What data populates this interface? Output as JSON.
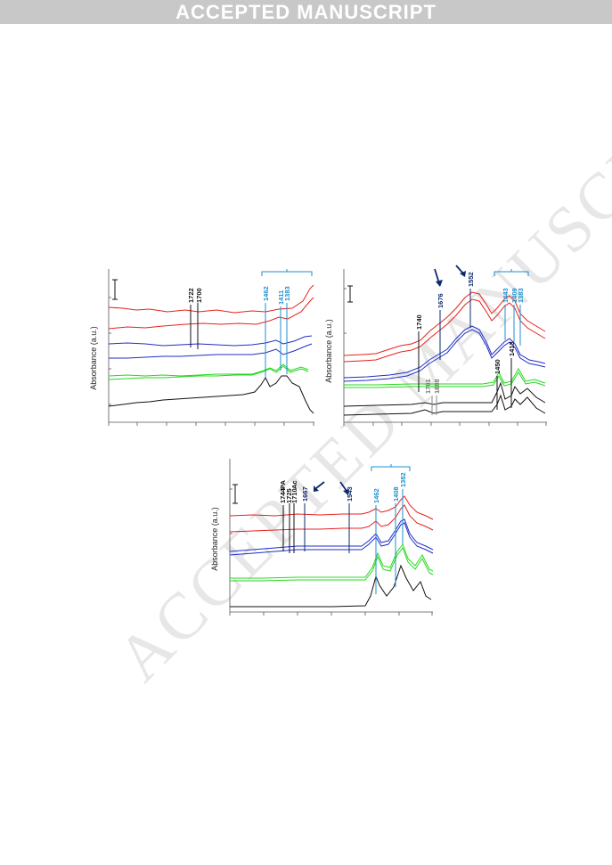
{
  "header": {
    "banner_text": "ACCEPTED MANUSCRIPT"
  },
  "watermark": {
    "text": "ACCEPTED MANUSCRIPT"
  },
  "colors": {
    "red": "#e8201b",
    "blue": "#1f2fc8",
    "green": "#27d81f",
    "black": "#111111",
    "cyan": "#1c8fcf",
    "navy": "#0d2a6b"
  },
  "chart_data": [
    {
      "type": "line",
      "ylabel": "Absorbance (a.u.)",
      "annotations_black": [
        "1722",
        "1700"
      ],
      "annotations_cyan": [
        "1462",
        "1411",
        "1383"
      ]
    },
    {
      "type": "line",
      "ylabel": "Absorbance (a.u.)",
      "annotations_black": [
        "1740",
        "1450",
        "1413"
      ],
      "annotations_gray": [
        "1701",
        "1688"
      ],
      "annotations_navy": [
        "1676",
        "1552"
      ],
      "annotations_cyan": [
        "1443",
        "1409",
        "1383"
      ]
    },
    {
      "type": "line",
      "ylabel": "Absorbance (a.u.)",
      "annotations_black": [
        "1744",
        "PA",
        "1725",
        "1710",
        "Ac"
      ],
      "annotations_navy": [
        "1667",
        "1543"
      ],
      "annotations_cyan": [
        "1462",
        "1408",
        "1382"
      ]
    }
  ]
}
